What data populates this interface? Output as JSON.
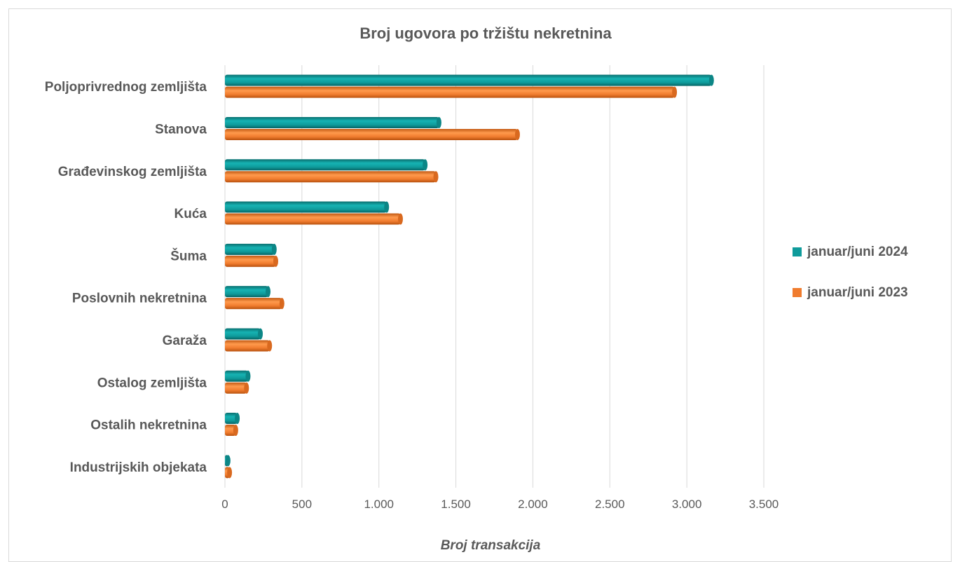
{
  "chart_data": {
    "type": "bar",
    "orientation": "horizontal",
    "style": "3d-cylinder",
    "title": "Broj ugovora po tržištu nekretnina",
    "xlabel": "Broj transakcija",
    "ylabel": "",
    "categories": [
      "Poljoprivrednog zemljišta",
      "Stanova",
      "Građevinskog zemljišta",
      "Kuća",
      "Šuma",
      "Poslovnih nekretnina",
      "Garaža",
      "Ostalog zemljišta",
      "Ostalih nekretnina",
      "Industrijskih objekata"
    ],
    "series": [
      {
        "name": "januar/juni 2024",
        "color": "#0f9b9b",
        "values": [
          3160,
          1390,
          1300,
          1050,
          320,
          280,
          230,
          150,
          80,
          20
        ]
      },
      {
        "name": "januar/juni 2023",
        "color": "#f07c2e",
        "values": [
          2920,
          1900,
          1370,
          1140,
          330,
          370,
          290,
          140,
          70,
          30
        ]
      }
    ],
    "xlim": [
      0,
      3500
    ],
    "xticks": [
      0,
      500,
      1000,
      1500,
      2000,
      2500,
      3000,
      3500
    ],
    "xtick_labels": [
      "0",
      "500",
      "1.000",
      "1.500",
      "2.000",
      "2.500",
      "3.000",
      "3.500"
    ],
    "grid": "vertical",
    "legend_position": "right"
  }
}
